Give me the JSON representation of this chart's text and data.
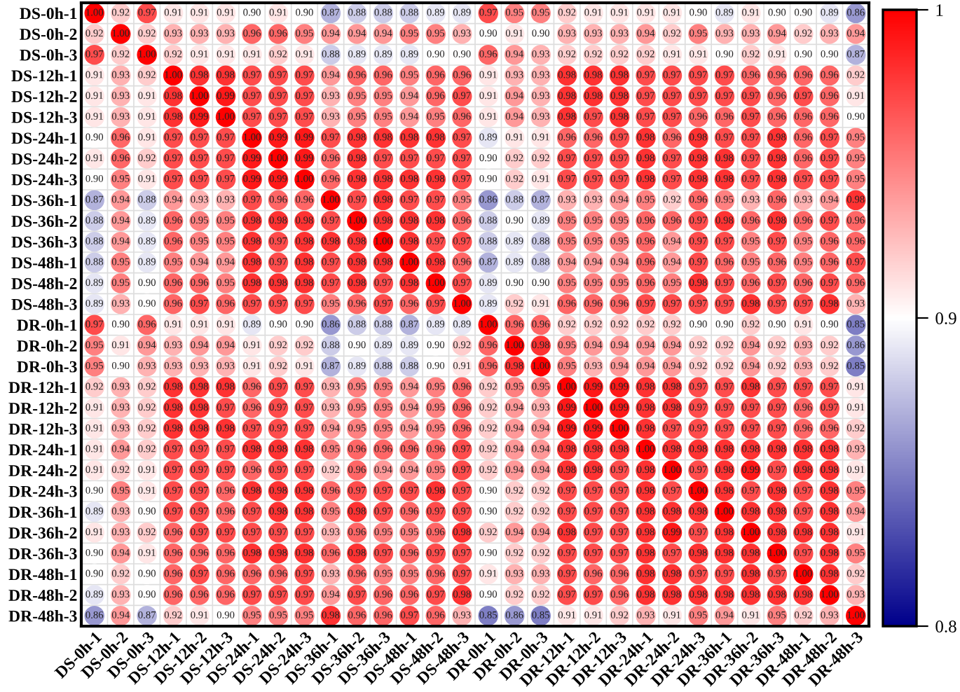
{
  "chart_data": {
    "type": "heatmap",
    "categories": [
      "DS-0h-1",
      "DS-0h-2",
      "DS-0h-3",
      "DS-12h-1",
      "DS-12h-2",
      "DS-12h-3",
      "DS-24h-1",
      "DS-24h-2",
      "DS-24h-3",
      "DS-36h-1",
      "DS-36h-2",
      "DS-36h-3",
      "DS-48h-1",
      "DS-48h-2",
      "DS-48h-3",
      "DR-0h-1",
      "DR-0h-2",
      "DR-0h-3",
      "DR-12h-1",
      "DR-12h-2",
      "DR-12h-3",
      "DR-24h-1",
      "DR-24h-2",
      "DR-24h-3",
      "DR-36h-1",
      "DR-36h-2",
      "DR-36h-3",
      "DR-48h-1",
      "DR-48h-2",
      "DR-48h-3"
    ],
    "y_categories": [
      "DS-0h-1",
      "DS-0h-2",
      "DS-0h-3",
      "DS-12h-1",
      "DS-12h-2",
      "DS-12h-3",
      "DS-24h-1",
      "DS-24h-2",
      "DS-24h-3",
      "DS-36h-1",
      "DS-36h-2",
      "DS-36h-3",
      "DS-48h-1",
      "DS-48h-2",
      "DS-48h-3",
      "DR-0h-1",
      "DR-0h-2",
      "DR-0h-3",
      "DR-12h-1",
      "DR-12h-2",
      "DR-12h-3",
      "DR-24h-1",
      "DR-24h-2",
      "DR-24h-3",
      "DR-36h-1",
      "DR-36h-2",
      "DR-36h-3",
      "DR-48h-1",
      "DR-48h-2",
      "DR-48h-3"
    ],
    "cells": [
      [
        1.0,
        0.92,
        0.97,
        0.91,
        0.91,
        0.91,
        0.9,
        0.91,
        0.9,
        0.87,
        0.88,
        0.88,
        0.88,
        0.89,
        0.89,
        0.97,
        0.95,
        0.95,
        0.92,
        0.91,
        0.91,
        0.91,
        0.91,
        0.9,
        0.89,
        0.91,
        0.9,
        0.9,
        0.89,
        0.86
      ],
      [
        0.92,
        1.0,
        0.92,
        0.93,
        0.93,
        0.93,
        0.96,
        0.96,
        0.95,
        0.94,
        0.94,
        0.94,
        0.95,
        0.95,
        0.93,
        0.9,
        0.91,
        0.9,
        0.93,
        0.93,
        0.93,
        0.94,
        0.92,
        0.95,
        0.93,
        0.93,
        0.94,
        0.92,
        0.93,
        0.94
      ],
      [
        0.97,
        0.92,
        1.0,
        0.92,
        0.91,
        0.91,
        0.91,
        0.92,
        0.91,
        0.88,
        0.89,
        0.89,
        0.89,
        0.9,
        0.9,
        0.96,
        0.94,
        0.93,
        0.92,
        0.92,
        0.92,
        0.92,
        0.91,
        0.91,
        0.9,
        0.92,
        0.91,
        0.9,
        0.9,
        0.87
      ],
      [
        0.91,
        0.93,
        0.92,
        1.0,
        0.98,
        0.98,
        0.97,
        0.97,
        0.97,
        0.94,
        0.96,
        0.96,
        0.95,
        0.96,
        0.96,
        0.91,
        0.93,
        0.93,
        0.98,
        0.98,
        0.98,
        0.97,
        0.97,
        0.97,
        0.97,
        0.96,
        0.96,
        0.96,
        0.96,
        0.92
      ],
      [
        0.91,
        0.93,
        0.91,
        0.98,
        1.0,
        0.99,
        0.97,
        0.97,
        0.97,
        0.93,
        0.95,
        0.95,
        0.94,
        0.96,
        0.97,
        0.91,
        0.94,
        0.93,
        0.98,
        0.98,
        0.98,
        0.97,
        0.97,
        0.97,
        0.97,
        0.97,
        0.96,
        0.97,
        0.96,
        0.91
      ],
      [
        0.91,
        0.93,
        0.91,
        0.98,
        0.99,
        1.0,
        0.97,
        0.97,
        0.97,
        0.93,
        0.95,
        0.95,
        0.94,
        0.95,
        0.96,
        0.91,
        0.94,
        0.93,
        0.98,
        0.97,
        0.98,
        0.97,
        0.97,
        0.96,
        0.96,
        0.97,
        0.96,
        0.96,
        0.96,
        0.9
      ],
      [
        0.9,
        0.96,
        0.91,
        0.97,
        0.97,
        0.97,
        1.0,
        0.99,
        0.99,
        0.97,
        0.98,
        0.98,
        0.98,
        0.98,
        0.97,
        0.89,
        0.91,
        0.91,
        0.96,
        0.96,
        0.97,
        0.98,
        0.96,
        0.98,
        0.97,
        0.97,
        0.98,
        0.96,
        0.97,
        0.95
      ],
      [
        0.91,
        0.96,
        0.92,
        0.97,
        0.97,
        0.97,
        0.99,
        1.0,
        0.99,
        0.96,
        0.98,
        0.97,
        0.97,
        0.97,
        0.97,
        0.9,
        0.92,
        0.92,
        0.97,
        0.97,
        0.97,
        0.98,
        0.97,
        0.98,
        0.98,
        0.97,
        0.98,
        0.96,
        0.97,
        0.95
      ],
      [
        0.9,
        0.95,
        0.91,
        0.97,
        0.97,
        0.97,
        0.99,
        0.99,
        1.0,
        0.96,
        0.98,
        0.98,
        0.98,
        0.98,
        0.97,
        0.9,
        0.92,
        0.91,
        0.97,
        0.97,
        0.97,
        0.98,
        0.97,
        0.98,
        0.98,
        0.97,
        0.98,
        0.97,
        0.97,
        0.95
      ],
      [
        0.87,
        0.94,
        0.88,
        0.94,
        0.93,
        0.93,
        0.97,
        0.96,
        0.96,
        1.0,
        0.97,
        0.98,
        0.97,
        0.97,
        0.95,
        0.86,
        0.88,
        0.87,
        0.93,
        0.93,
        0.94,
        0.95,
        0.92,
        0.96,
        0.95,
        0.93,
        0.96,
        0.93,
        0.94,
        0.98
      ],
      [
        0.88,
        0.94,
        0.89,
        0.96,
        0.95,
        0.95,
        0.98,
        0.98,
        0.98,
        0.97,
        1.0,
        0.98,
        0.98,
        0.98,
        0.96,
        0.88,
        0.9,
        0.89,
        0.95,
        0.95,
        0.95,
        0.96,
        0.96,
        0.97,
        0.98,
        0.96,
        0.98,
        0.96,
        0.97,
        0.96
      ],
      [
        0.88,
        0.94,
        0.89,
        0.96,
        0.95,
        0.95,
        0.98,
        0.97,
        0.98,
        0.98,
        0.98,
        1.0,
        0.98,
        0.97,
        0.97,
        0.88,
        0.89,
        0.88,
        0.95,
        0.95,
        0.95,
        0.96,
        0.94,
        0.97,
        0.97,
        0.95,
        0.97,
        0.95,
        0.96,
        0.96
      ],
      [
        0.88,
        0.95,
        0.89,
        0.95,
        0.94,
        0.94,
        0.98,
        0.97,
        0.98,
        0.97,
        0.98,
        0.98,
        1.0,
        0.98,
        0.96,
        0.87,
        0.89,
        0.88,
        0.94,
        0.94,
        0.94,
        0.96,
        0.94,
        0.97,
        0.96,
        0.95,
        0.96,
        0.95,
        0.96,
        0.97
      ],
      [
        0.89,
        0.95,
        0.9,
        0.96,
        0.96,
        0.95,
        0.98,
        0.98,
        0.98,
        0.97,
        0.98,
        0.97,
        0.98,
        1.0,
        0.97,
        0.89,
        0.9,
        0.9,
        0.95,
        0.95,
        0.95,
        0.96,
        0.95,
        0.98,
        0.97,
        0.96,
        0.97,
        0.96,
        0.97,
        0.96
      ],
      [
        0.89,
        0.93,
        0.9,
        0.96,
        0.97,
        0.96,
        0.97,
        0.97,
        0.97,
        0.95,
        0.96,
        0.97,
        0.96,
        0.97,
        1.0,
        0.89,
        0.92,
        0.91,
        0.96,
        0.96,
        0.96,
        0.97,
        0.97,
        0.97,
        0.97,
        0.98,
        0.97,
        0.97,
        0.98,
        0.93
      ],
      [
        0.97,
        0.9,
        0.96,
        0.91,
        0.91,
        0.91,
        0.89,
        0.9,
        0.9,
        0.86,
        0.88,
        0.88,
        0.87,
        0.89,
        0.89,
        1.0,
        0.96,
        0.96,
        0.92,
        0.92,
        0.92,
        0.92,
        0.92,
        0.9,
        0.9,
        0.92,
        0.9,
        0.91,
        0.9,
        0.85
      ],
      [
        0.95,
        0.91,
        0.94,
        0.93,
        0.94,
        0.94,
        0.91,
        0.92,
        0.92,
        0.88,
        0.9,
        0.89,
        0.89,
        0.9,
        0.92,
        0.96,
        1.0,
        0.98,
        0.95,
        0.94,
        0.94,
        0.94,
        0.94,
        0.92,
        0.92,
        0.94,
        0.92,
        0.93,
        0.92,
        0.86
      ],
      [
        0.95,
        0.9,
        0.93,
        0.93,
        0.93,
        0.93,
        0.91,
        0.92,
        0.91,
        0.87,
        0.89,
        0.88,
        0.88,
        0.9,
        0.91,
        0.96,
        0.98,
        1.0,
        0.95,
        0.93,
        0.94,
        0.94,
        0.94,
        0.92,
        0.92,
        0.94,
        0.92,
        0.93,
        0.92,
        0.85
      ],
      [
        0.92,
        0.93,
        0.92,
        0.98,
        0.98,
        0.98,
        0.96,
        0.97,
        0.97,
        0.93,
        0.95,
        0.95,
        0.94,
        0.95,
        0.96,
        0.92,
        0.95,
        0.95,
        1.0,
        0.99,
        0.99,
        0.98,
        0.98,
        0.97,
        0.97,
        0.98,
        0.97,
        0.97,
        0.97,
        0.91
      ],
      [
        0.91,
        0.93,
        0.92,
        0.98,
        0.98,
        0.97,
        0.96,
        0.97,
        0.97,
        0.93,
        0.95,
        0.95,
        0.94,
        0.95,
        0.96,
        0.92,
        0.94,
        0.93,
        0.99,
        1.0,
        0.99,
        0.98,
        0.98,
        0.97,
        0.97,
        0.97,
        0.97,
        0.96,
        0.97,
        0.91
      ],
      [
        0.91,
        0.93,
        0.92,
        0.98,
        0.98,
        0.98,
        0.97,
        0.97,
        0.97,
        0.94,
        0.95,
        0.95,
        0.94,
        0.95,
        0.96,
        0.92,
        0.94,
        0.94,
        0.99,
        0.99,
        1.0,
        0.98,
        0.97,
        0.97,
        0.97,
        0.97,
        0.97,
        0.96,
        0.96,
        0.92
      ],
      [
        0.91,
        0.94,
        0.92,
        0.97,
        0.97,
        0.97,
        0.98,
        0.98,
        0.98,
        0.95,
        0.96,
        0.96,
        0.96,
        0.96,
        0.97,
        0.92,
        0.94,
        0.94,
        0.98,
        0.98,
        0.98,
        1.0,
        0.98,
        0.98,
        0.98,
        0.98,
        0.98,
        0.98,
        0.98,
        0.93
      ],
      [
        0.91,
        0.92,
        0.91,
        0.97,
        0.97,
        0.97,
        0.96,
        0.97,
        0.97,
        0.92,
        0.96,
        0.94,
        0.94,
        0.95,
        0.97,
        0.92,
        0.94,
        0.94,
        0.98,
        0.98,
        0.97,
        0.98,
        1.0,
        0.97,
        0.98,
        0.99,
        0.97,
        0.98,
        0.98,
        0.91
      ],
      [
        0.9,
        0.95,
        0.91,
        0.97,
        0.97,
        0.96,
        0.98,
        0.98,
        0.98,
        0.96,
        0.97,
        0.97,
        0.97,
        0.98,
        0.97,
        0.9,
        0.92,
        0.92,
        0.97,
        0.97,
        0.97,
        0.98,
        0.97,
        1.0,
        0.98,
        0.97,
        0.98,
        0.97,
        0.98,
        0.95
      ],
      [
        0.89,
        0.93,
        0.9,
        0.97,
        0.97,
        0.96,
        0.97,
        0.98,
        0.98,
        0.95,
        0.98,
        0.97,
        0.96,
        0.97,
        0.97,
        0.9,
        0.92,
        0.92,
        0.97,
        0.97,
        0.97,
        0.98,
        0.98,
        0.98,
        1.0,
        0.98,
        0.98,
        0.97,
        0.98,
        0.94
      ],
      [
        0.91,
        0.93,
        0.92,
        0.96,
        0.97,
        0.97,
        0.97,
        0.97,
        0.97,
        0.93,
        0.96,
        0.95,
        0.95,
        0.96,
        0.98,
        0.92,
        0.94,
        0.94,
        0.98,
        0.97,
        0.97,
        0.98,
        0.99,
        0.97,
        0.98,
        1.0,
        0.98,
        0.98,
        0.98,
        0.91
      ],
      [
        0.9,
        0.94,
        0.91,
        0.96,
        0.96,
        0.96,
        0.98,
        0.98,
        0.98,
        0.96,
        0.98,
        0.97,
        0.96,
        0.97,
        0.97,
        0.9,
        0.92,
        0.92,
        0.97,
        0.97,
        0.97,
        0.98,
        0.97,
        0.98,
        0.98,
        0.98,
        1.0,
        0.97,
        0.98,
        0.95
      ],
      [
        0.9,
        0.92,
        0.9,
        0.96,
        0.97,
        0.96,
        0.96,
        0.96,
        0.97,
        0.93,
        0.96,
        0.95,
        0.95,
        0.96,
        0.97,
        0.91,
        0.93,
        0.93,
        0.97,
        0.96,
        0.96,
        0.98,
        0.98,
        0.97,
        0.97,
        0.98,
        0.97,
        1.0,
        0.98,
        0.92
      ],
      [
        0.89,
        0.93,
        0.9,
        0.96,
        0.96,
        0.96,
        0.97,
        0.97,
        0.97,
        0.94,
        0.97,
        0.96,
        0.96,
        0.97,
        0.98,
        0.9,
        0.92,
        0.92,
        0.97,
        0.97,
        0.96,
        0.98,
        0.98,
        0.98,
        0.98,
        0.98,
        0.98,
        0.98,
        1.0,
        0.93
      ],
      [
        0.86,
        0.94,
        0.87,
        0.92,
        0.91,
        0.9,
        0.95,
        0.95,
        0.95,
        0.98,
        0.96,
        0.96,
        0.97,
        0.96,
        0.93,
        0.85,
        0.86,
        0.85,
        0.91,
        0.91,
        0.92,
        0.93,
        0.91,
        0.95,
        0.94,
        0.91,
        0.95,
        0.92,
        0.93,
        1.0
      ]
    ],
    "cell_labels": [
      [
        "1.00",
        "0.92",
        "0.97",
        "0.91",
        "0.91",
        "0.91",
        "0.90",
        "0.91",
        "0.90",
        "0.87",
        "0.88",
        "0.88",
        "0.88",
        "0.89",
        "0.89",
        "0.97",
        "0.95",
        "0.95",
        "0.92",
        "0.91",
        "0.91",
        "0.91",
        "0.91",
        "0.90",
        "0.89",
        "0.91",
        "0.90",
        "0.90",
        "0.89",
        "0.86"
      ],
      [
        "0.92",
        "1.00",
        "0.92",
        "0.93",
        "0.93",
        "0.93",
        "0.96",
        "0.96",
        "0.95",
        "0.94",
        "0.94",
        "0.94",
        "0.95",
        "0.95",
        "0.93",
        "0.90",
        "0.91",
        "0.90",
        "0.93",
        "0.93",
        "0.93",
        "0.94",
        "0.92",
        "0.95",
        "0.93",
        "0.93",
        "0.94",
        "0.92",
        "0.93",
        "0.94"
      ],
      [
        "0.97",
        "0.92",
        "1.00",
        "0.92",
        "0.91",
        "0.91",
        "0.91",
        "0.92",
        "0.91",
        "0.88",
        "0.89",
        "0.89",
        "0.89",
        "0.90",
        "0.90",
        "0.96",
        "0.94",
        "0.93",
        "0.92",
        "0.92",
        "0.92",
        "0.92",
        "0.91",
        "0.91",
        "0.90",
        "0.92",
        "0.91",
        "0.90",
        "0.90",
        "0.87"
      ],
      [
        "0.91",
        "0.93",
        "0.92",
        "1.00",
        "0.98",
        "0.98",
        "0.97",
        "0.97",
        "0.97",
        "0.94",
        "0.96",
        "0.96",
        "0.95",
        "0.96",
        "0.96",
        "0.91",
        "0.93",
        "0.93",
        "0.98",
        "0.98",
        "0.98",
        "0.97",
        "0.97",
        "0.97",
        "0.97",
        "0.96",
        "0.96",
        "0.96",
        "0.96",
        "0.92"
      ],
      [
        "0.91",
        "0.93",
        "0.91",
        "0.98",
        "1.00",
        "0.99",
        "0.97",
        "0.97",
        "0.97",
        "0.93",
        "0.95",
        "0.95",
        "0.94",
        "0.96",
        "0.97",
        "0.91",
        "0.94",
        "0.93",
        "0.98",
        "0.98",
        "0.98",
        "0.97",
        "0.97",
        "0.97",
        "0.97",
        "0.97",
        "0.96",
        "0.97",
        "0.96",
        "0.91"
      ],
      [
        "0.91",
        "0.93",
        "0.91",
        "0.98",
        "0.99",
        "1.00",
        "0.97",
        "0.97",
        "0.97",
        "0.93",
        "0.95",
        "0.95",
        "0.94",
        "0.95",
        "0.96",
        "0.91",
        "0.94",
        "0.93",
        "0.98",
        "0.97",
        "0.98",
        "0.97",
        "0.97",
        "0.96",
        "0.96",
        "0.97",
        "0.96",
        "0.96",
        "0.96",
        "0.90"
      ],
      [
        "0.90",
        "0.96",
        "0.91",
        "0.97",
        "0.97",
        "0.97",
        "1.00",
        "0.99",
        "0.99",
        "0.97",
        "0.98",
        "0.98",
        "0.98",
        "0.98",
        "0.97",
        "0.89",
        "0.91",
        "0.91",
        "0.96",
        "0.96",
        "0.97",
        "0.98",
        "0.96",
        "0.98",
        "0.97",
        "0.97",
        "0.98",
        "0.96",
        "0.97",
        "0.95"
      ],
      [
        "0.91",
        "0.96",
        "0.92",
        "0.97",
        "0.97",
        "0.97",
        "0.99",
        "1.00",
        "0.99",
        "0.96",
        "0.98",
        "0.97",
        "0.97",
        "0.97",
        "0.97",
        "0.90",
        "0.92",
        "0.92",
        "0.97",
        "0.97",
        "0.97",
        "0.98",
        "0.97",
        "0.98",
        "0.98",
        "0.97",
        "0.98",
        "0.96",
        "0.97",
        "0.95"
      ],
      [
        "0.90",
        "0.95",
        "0.91",
        "0.97",
        "0.97",
        "0.97",
        "0.99",
        "0.99",
        "1.00",
        "0.96",
        "0.98",
        "0.98",
        "0.98",
        "0.98",
        "0.97",
        "0.90",
        "0.92",
        "0.91",
        "0.97",
        "0.97",
        "0.97",
        "0.98",
        "0.97",
        "0.98",
        "0.98",
        "0.97",
        "0.98",
        "0.97",
        "0.97",
        "0.95"
      ],
      [
        "0.87",
        "0.94",
        "0.88",
        "0.94",
        "0.93",
        "0.93",
        "0.97",
        "0.96",
        "0.96",
        "1.00",
        "0.97",
        "0.98",
        "0.97",
        "0.97",
        "0.95",
        "0.86",
        "0.88",
        "0.87",
        "0.93",
        "0.93",
        "0.94",
        "0.95",
        "0.92",
        "0.96",
        "0.95",
        "0.93",
        "0.96",
        "0.93",
        "0.94",
        "0.98"
      ],
      [
        "0.88",
        "0.94",
        "0.89",
        "0.96",
        "0.95",
        "0.95",
        "0.98",
        "0.98",
        "0.98",
        "0.97",
        "1.00",
        "0.98",
        "0.98",
        "0.98",
        "0.96",
        "0.88",
        "0.90",
        "0.89",
        "0.95",
        "0.95",
        "0.95",
        "0.96",
        "0.96",
        "0.97",
        "0.98",
        "0.96",
        "0.98",
        "0.96",
        "0.97",
        "0.96"
      ],
      [
        "0.88",
        "0.94",
        "0.89",
        "0.96",
        "0.95",
        "0.95",
        "0.98",
        "0.97",
        "0.98",
        "0.98",
        "0.98",
        "1.00",
        "0.98",
        "0.97",
        "0.97",
        "0.88",
        "0.89",
        "0.88",
        "0.95",
        "0.95",
        "0.95",
        "0.96",
        "0.94",
        "0.97",
        "0.97",
        "0.95",
        "0.97",
        "0.95",
        "0.96",
        "0.96"
      ],
      [
        "0.88",
        "0.95",
        "0.89",
        "0.95",
        "0.94",
        "0.94",
        "0.98",
        "0.97",
        "0.98",
        "0.97",
        "0.98",
        "0.98",
        "1.00",
        "0.98",
        "0.96",
        "0.87",
        "0.89",
        "0.88",
        "0.94",
        "0.94",
        "0.94",
        "0.96",
        "0.94",
        "0.97",
        "0.96",
        "0.95",
        "0.96",
        "0.95",
        "0.96",
        "0.97"
      ],
      [
        "0.89",
        "0.95",
        "0.90",
        "0.96",
        "0.96",
        "0.95",
        "0.98",
        "0.98",
        "0.98",
        "0.97",
        "0.98",
        "0.97",
        "0.98",
        "1.00",
        "0.97",
        "0.89",
        "0.90",
        "0.90",
        "0.95",
        "0.95",
        "0.95",
        "0.96",
        "0.95",
        "0.98",
        "0.97",
        "0.96",
        "0.97",
        "0.96",
        "0.97",
        "0.96"
      ],
      [
        "0.89",
        "0.93",
        "0.90",
        "0.96",
        "0.97",
        "0.96",
        "0.97",
        "0.97",
        "0.97",
        "0.95",
        "0.96",
        "0.97",
        "0.96",
        "0.97",
        "1.00",
        "0.89",
        "0.92",
        "0.91",
        "0.96",
        "0.96",
        "0.96",
        "0.97",
        "0.97",
        "0.97",
        "0.97",
        "0.98",
        "0.97",
        "0.97",
        "0.98",
        "0.93"
      ],
      [
        "0.97",
        "0.90",
        "0.96",
        "0.91",
        "0.91",
        "0.91",
        "0.89",
        "0.90",
        "0.90",
        "0.86",
        "0.88",
        "0.88",
        "0.87",
        "0.89",
        "0.89",
        "1.00",
        "0.96",
        "0.96",
        "0.92",
        "0.92",
        "0.92",
        "0.92",
        "0.92",
        "0.90",
        "0.90",
        "0.92",
        "0.90",
        "0.91",
        "0.90",
        "0.85"
      ],
      [
        "0.95",
        "0.91",
        "0.94",
        "0.93",
        "0.94",
        "0.94",
        "0.91",
        "0.92",
        "0.92",
        "0.88",
        "0.90",
        "0.89",
        "0.89",
        "0.90",
        "0.92",
        "0.96",
        "1.00",
        "0.98",
        "0.95",
        "0.94",
        "0.94",
        "0.94",
        "0.94",
        "0.92",
        "0.92",
        "0.94",
        "0.92",
        "0.93",
        "0.92",
        "0.86"
      ],
      [
        "0.95",
        "0.90",
        "0.93",
        "0.93",
        "0.93",
        "0.93",
        "0.91",
        "0.92",
        "0.91",
        "0.87",
        "0.89",
        "0.88",
        "0.88",
        "0.90",
        "0.91",
        "0.96",
        "0.98",
        "1.00",
        "0.95",
        "0.93",
        "0.94",
        "0.94",
        "0.94",
        "0.92",
        "0.92",
        "0.94",
        "0.92",
        "0.93",
        "0.92",
        "0.85"
      ],
      [
        "0.92",
        "0.93",
        "0.92",
        "0.98",
        "0.98",
        "0.98",
        "0.96",
        "0.97",
        "0.97",
        "0.93",
        "0.95",
        "0.95",
        "0.94",
        "0.95",
        "0.96",
        "0.92",
        "0.95",
        "0.95",
        "1.00",
        "0.99",
        "0.99",
        "0.98",
        "0.98",
        "0.97",
        "0.97",
        "0.98",
        "0.97",
        "0.97",
        "0.97",
        "0.91"
      ],
      [
        "0.91",
        "0.93",
        "0.92",
        "0.98",
        "0.98",
        "0.97",
        "0.96",
        "0.97",
        "0.97",
        "0.93",
        "0.95",
        "0.95",
        "0.94",
        "0.95",
        "0.96",
        "0.92",
        "0.94",
        "0.93",
        "0.99",
        "1.00",
        "0.99",
        "0.98",
        "0.98",
        "0.97",
        "0.97",
        "0.97",
        "0.97",
        "0.96",
        "0.97",
        "0.91"
      ],
      [
        "0.91",
        "0.93",
        "0.92",
        "0.98",
        "0.98",
        "0.98",
        "0.97",
        "0.97",
        "0.97",
        "0.94",
        "0.95",
        "0.95",
        "0.94",
        "0.95",
        "0.96",
        "0.92",
        "0.94",
        "0.94",
        "0.99",
        "0.99",
        "1.00",
        "0.98",
        "0.97",
        "0.97",
        "0.97",
        "0.97",
        "0.97",
        "0.96",
        "0.96",
        "0.92"
      ],
      [
        "0.91",
        "0.94",
        "0.92",
        "0.97",
        "0.97",
        "0.97",
        "0.98",
        "0.98",
        "0.98",
        "0.95",
        "0.96",
        "0.96",
        "0.96",
        "0.96",
        "0.97",
        "0.92",
        "0.94",
        "0.94",
        "0.98",
        "0.98",
        "0.98",
        "1.00",
        "0.98",
        "0.98",
        "0.98",
        "0.98",
        "0.98",
        "0.98",
        "0.98",
        "0.93"
      ],
      [
        "0.91",
        "0.92",
        "0.91",
        "0.97",
        "0.97",
        "0.97",
        "0.96",
        "0.97",
        "0.97",
        "0.92",
        "0.96",
        "0.94",
        "0.94",
        "0.95",
        "0.97",
        "0.92",
        "0.94",
        "0.94",
        "0.98",
        "0.98",
        "0.97",
        "0.98",
        "1.00",
        "0.97",
        "0.98",
        "0.99",
        "0.97",
        "0.98",
        "0.98",
        "0.91"
      ],
      [
        "0.90",
        "0.95",
        "0.91",
        "0.97",
        "0.97",
        "0.96",
        "0.98",
        "0.98",
        "0.98",
        "0.96",
        "0.97",
        "0.97",
        "0.97",
        "0.98",
        "0.97",
        "0.90",
        "0.92",
        "0.92",
        "0.97",
        "0.97",
        "0.97",
        "0.98",
        "0.97",
        "1.00",
        "0.98",
        "0.97",
        "0.98",
        "0.97",
        "0.98",
        "0.95"
      ],
      [
        "0.89",
        "0.93",
        "0.90",
        "0.97",
        "0.97",
        "0.96",
        "0.97",
        "0.98",
        "0.98",
        "0.95",
        "0.98",
        "0.97",
        "0.96",
        "0.97",
        "0.97",
        "0.90",
        "0.92",
        "0.92",
        "0.97",
        "0.97",
        "0.97",
        "0.98",
        "0.98",
        "0.98",
        "1.00",
        "0.98",
        "0.98",
        "0.97",
        "0.98",
        "0.94"
      ],
      [
        "0.91",
        "0.93",
        "0.92",
        "0.96",
        "0.97",
        "0.97",
        "0.97",
        "0.97",
        "0.97",
        "0.93",
        "0.96",
        "0.95",
        "0.95",
        "0.96",
        "0.98",
        "0.92",
        "0.94",
        "0.94",
        "0.98",
        "0.97",
        "0.97",
        "0.98",
        "0.99",
        "0.97",
        "0.98",
        "1.00",
        "0.98",
        "0.98",
        "0.98",
        "0.91"
      ],
      [
        "0.90",
        "0.94",
        "0.91",
        "0.96",
        "0.96",
        "0.96",
        "0.98",
        "0.98",
        "0.98",
        "0.96",
        "0.98",
        "0.97",
        "0.96",
        "0.97",
        "0.97",
        "0.90",
        "0.92",
        "0.92",
        "0.97",
        "0.97",
        "0.97",
        "0.98",
        "0.97",
        "0.98",
        "0.98",
        "0.98",
        "1.00",
        "0.97",
        "0.98",
        "0.95"
      ],
      [
        "0.90",
        "0.92",
        "0.90",
        "0.96",
        "0.97",
        "0.96",
        "0.96",
        "0.96",
        "0.97",
        "0.93",
        "0.96",
        "0.95",
        "0.95",
        "0.96",
        "0.97",
        "0.91",
        "0.93",
        "0.93",
        "0.97",
        "0.96",
        "0.96",
        "0.98",
        "0.98",
        "0.97",
        "0.97",
        "0.98",
        "0.97",
        "1.00",
        "0.98",
        "0.92"
      ],
      [
        "0.89",
        "0.93",
        "0.90",
        "0.96",
        "0.96",
        "0.96",
        "0.97",
        "0.97",
        "0.97",
        "0.94",
        "0.97",
        "0.96",
        "0.96",
        "0.97",
        "0.98",
        "0.90",
        "0.92",
        "0.92",
        "0.97",
        "0.97",
        "0.96",
        "0.98",
        "0.98",
        "0.98",
        "0.98",
        "0.98",
        "0.98",
        "0.98",
        "1.00",
        "0.93"
      ],
      [
        "0.86",
        "0.94",
        "0.87",
        "0.92",
        "0.91",
        "0.90",
        "0.95",
        "0.95",
        "0.95",
        "0.98",
        "0.96",
        "0.96",
        "0.97",
        "0.96",
        "0.93",
        "0.85",
        "0.86",
        "0.85",
        "0.91",
        "0.91",
        "0.92",
        "0.93",
        "0.91",
        "0.95",
        "0.94",
        "0.91",
        "0.95",
        "0.92",
        "0.93",
        "1.00"
      ]
    ],
    "clim": [
      0.8,
      1
    ],
    "cticks": [
      0.8,
      0.9,
      1
    ],
    "data_labels": true
  }
}
